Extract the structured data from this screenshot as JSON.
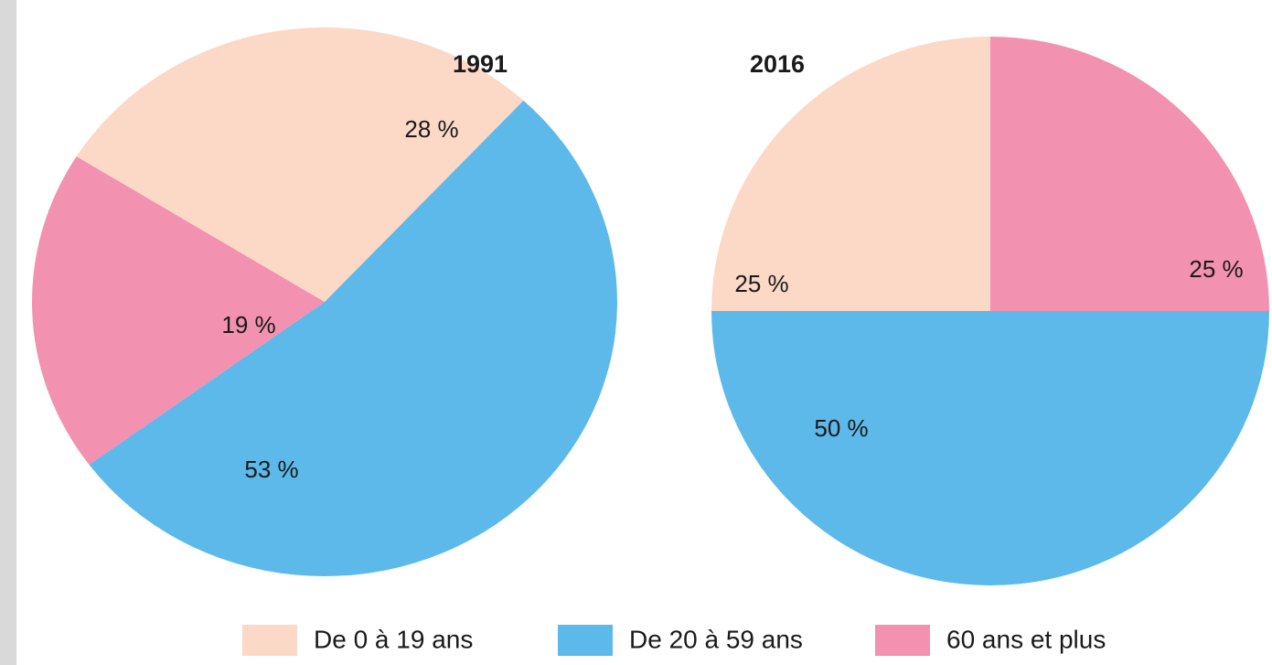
{
  "chart_data": [
    {
      "type": "pie",
      "title": "1991",
      "categories": [
        "De 0 à 19 ans",
        "De 20 à 59 ans",
        "60 ans et plus"
      ],
      "values": [
        28,
        53,
        19
      ],
      "value_labels": [
        "28 %",
        "53 %",
        "19 %"
      ],
      "colors": [
        "#fcd8c6",
        "#5cb9ea",
        "#f291b0"
      ]
    },
    {
      "type": "pie",
      "title": "2016",
      "categories": [
        "De 0 à 19 ans",
        "De 20 à 59 ans",
        "60 ans et plus"
      ],
      "values": [
        25,
        50,
        25
      ],
      "value_labels": [
        "25 %",
        "50 %",
        "25 %"
      ],
      "colors": [
        "#fcd8c6",
        "#5cb9ea",
        "#f291b0"
      ]
    }
  ]
}
